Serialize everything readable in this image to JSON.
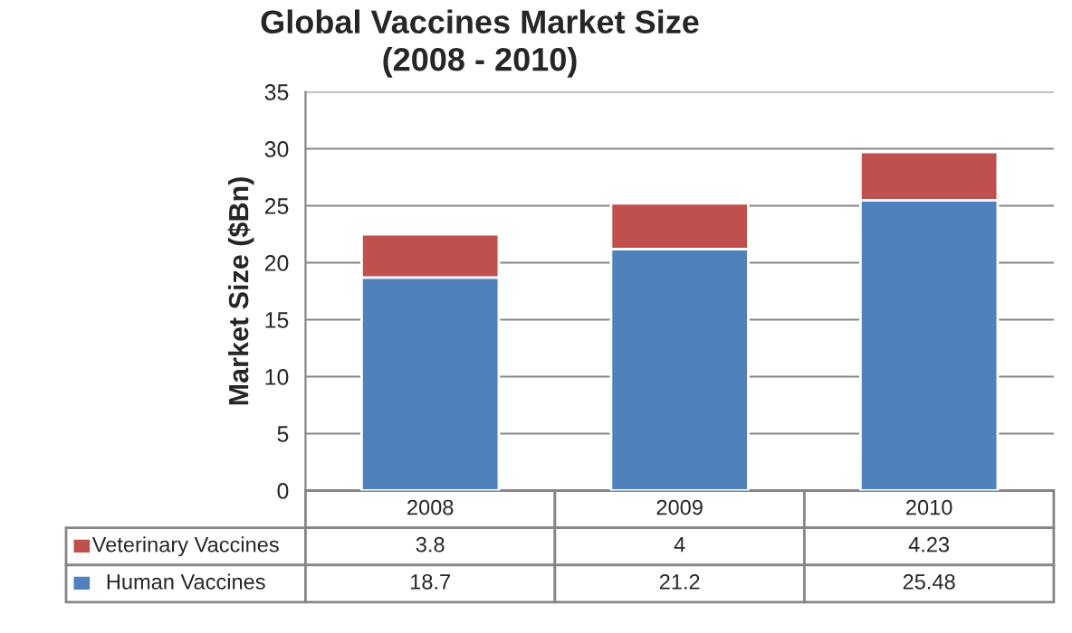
{
  "chart_data": {
    "type": "bar",
    "title": "Global Vaccines Market Size\n(2008 - 2010)",
    "ylabel": "Market Size ($Bn)",
    "categories": [
      "2008",
      "2009",
      "2010"
    ],
    "stacked": true,
    "series": [
      {
        "name": "Human Vaccines",
        "color": "#4f81bd",
        "values": [
          18.7,
          21.2,
          25.48
        ]
      },
      {
        "name": "Veterinary Vaccines",
        "color": "#c0504d",
        "values": [
          3.8,
          4,
          4.23
        ]
      }
    ],
    "ylim": [
      0,
      35
    ],
    "yticks": [
      0,
      5,
      10,
      15,
      20,
      25,
      30,
      35
    ],
    "grid": "y",
    "legend": "bottom",
    "data_labels": true
  }
}
